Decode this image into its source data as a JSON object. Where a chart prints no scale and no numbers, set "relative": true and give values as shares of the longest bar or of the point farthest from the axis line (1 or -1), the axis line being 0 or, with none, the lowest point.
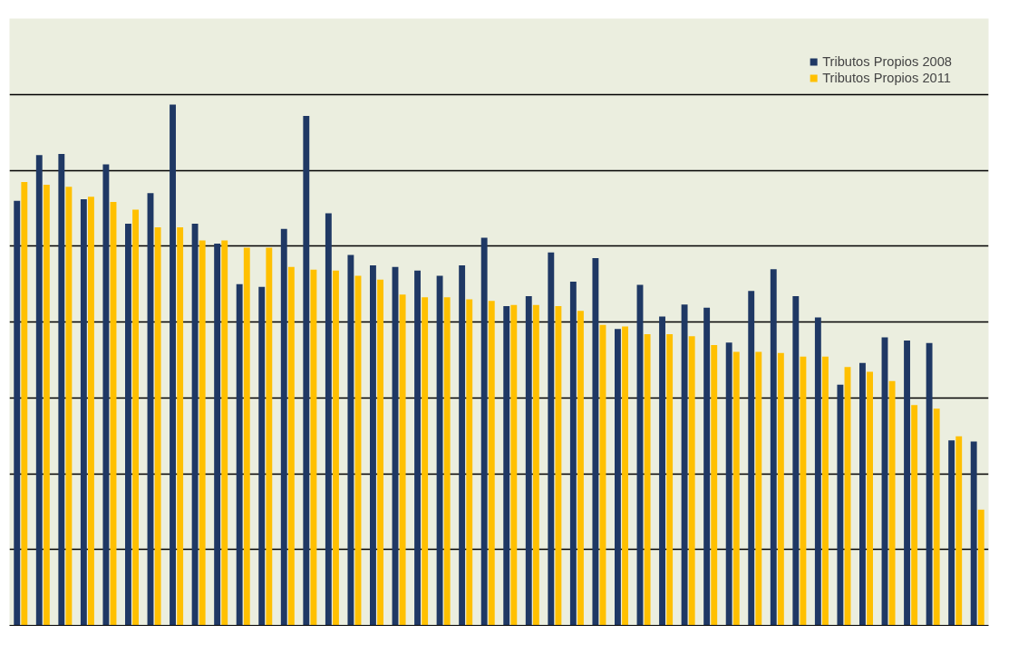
{
  "chart_data": {
    "type": "bar",
    "relative": true,
    "grid": "y",
    "legend": "top right",
    "categories": [
      null,
      null,
      null,
      null,
      null,
      null,
      null,
      null,
      null,
      null,
      null,
      null,
      null,
      null,
      null,
      null,
      null,
      null,
      null,
      null,
      null,
      null,
      null,
      null,
      null,
      null,
      null,
      null,
      null,
      null,
      null,
      null,
      null,
      null,
      null,
      null,
      null,
      null,
      null,
      null,
      null,
      null,
      null,
      null
    ],
    "series": [
      {
        "name": "Tributos Propios 2008",
        "color": "#1f3864",
        "values": [
          0.815,
          0.903,
          0.905,
          0.818,
          0.885,
          0.771,
          0.83,
          1,
          0.771,
          0.733,
          0.655,
          0.65,
          0.761,
          0.978,
          0.791,
          0.711,
          0.691,
          0.688,
          0.681,
          0.671,
          0.691,
          0.744,
          0.613,
          0.632,
          0.716,
          0.66,
          0.705,
          0.569,
          0.654,
          0.593,
          0.616,
          0.61,
          0.543,
          0.642,
          0.684,
          0.632,
          0.591,
          0.462,
          0.504,
          0.553,
          0.547,
          0.542,
          0.355,
          0.353
        ]
      },
      {
        "name": "Tributos Propios 2011",
        "color": "#ffc000",
        "values": [
          0.851,
          0.846,
          0.842,
          0.823,
          0.813,
          0.798,
          0.764,
          0.764,
          0.739,
          0.739,
          0.725,
          0.725,
          0.688,
          0.683,
          0.681,
          0.671,
          0.664,
          0.635,
          0.63,
          0.63,
          0.626,
          0.623,
          0.615,
          0.615,
          0.613,
          0.604,
          0.577,
          0.574,
          0.559,
          0.559,
          0.555,
          0.538,
          0.525,
          0.525,
          0.523,
          0.516,
          0.516,
          0.496,
          0.487,
          0.469,
          0.423,
          0.416,
          0.363,
          0.222
        ]
      }
    ]
  }
}
